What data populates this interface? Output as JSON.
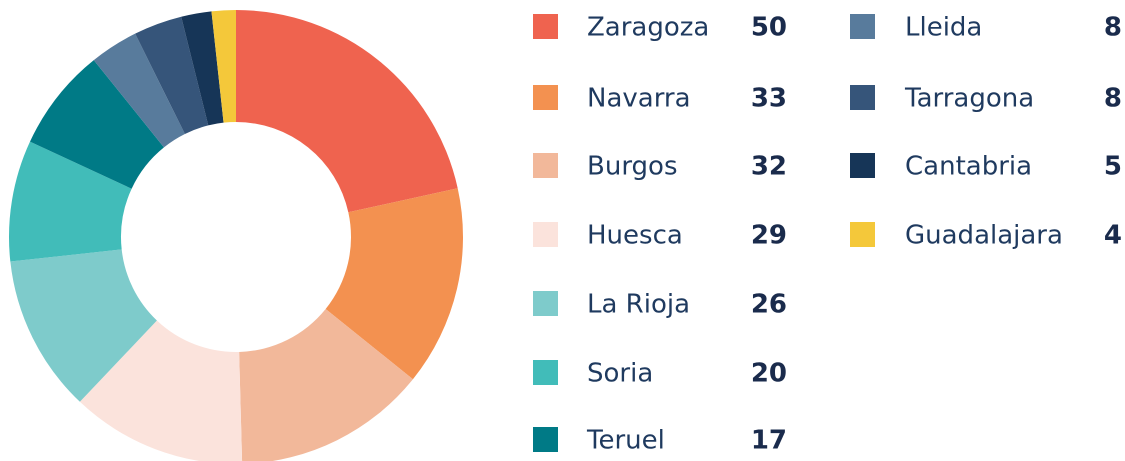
{
  "chart_data": {
    "type": "donut",
    "categories": [
      "Zaragoza",
      "Navarra",
      "Burgos",
      "Huesca",
      "La Rioja",
      "Soria",
      "Teruel",
      "Lleida",
      "Tarragona",
      "Cantabria",
      "Guadalajara"
    ],
    "values": [
      50,
      33,
      32,
      29,
      26,
      20,
      17,
      8,
      8,
      5,
      4
    ],
    "colors": [
      "#ef634f",
      "#f39150",
      "#f2b89a",
      "#fbe3dc",
      "#7ecbcb",
      "#41bcb9",
      "#007a86",
      "#587b9c",
      "#36557a",
      "#163557",
      "#f4c83a"
    ],
    "legend": "right"
  }
}
